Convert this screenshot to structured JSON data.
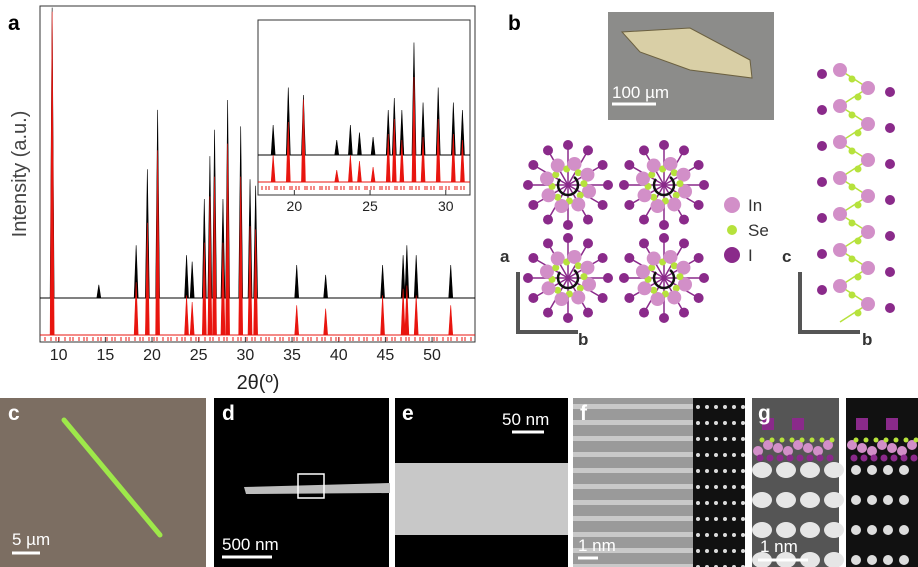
{
  "panels": {
    "a": {
      "label": "a",
      "chart": {
        "type": "line",
        "ylabel": "Intensity (a.u.)",
        "xlabel": "2θ(º)",
        "xlim": [
          8,
          54.6
        ],
        "xticks": [
          10,
          15,
          20,
          25,
          30,
          35,
          40,
          45,
          50
        ],
        "ylim": [
          0,
          100
        ],
        "series": [
          {
            "color": "#000000",
            "x": [
              9.3,
              14.3,
              18.3,
              19.5,
              20.6,
              23.7,
              24.3,
              25.6,
              26.2,
              26.7,
              27.6,
              28.1,
              29.5,
              30.5,
              31.1,
              35.5,
              38.6,
              44.7,
              46.9,
              47.3,
              48.3,
              52
            ],
            "values": [
              88,
              4,
              16,
              39,
              57,
              13,
              11,
              30,
              43,
              51,
              30,
              60,
              52,
              36,
              34,
              10,
              7,
              10,
              13,
              16,
              13,
              10
            ]
          },
          {
            "color": "#e8150f",
            "x": [
              9.3,
              18.3,
              19.5,
              20.6,
              23.7,
              24.3,
              25.6,
              26.2,
              26.7,
              27.6,
              28.1,
              29.5,
              30.5,
              31.1,
              35.5,
              38.6,
              44.7,
              46.9,
              47.3,
              48.3,
              52
            ],
            "values": [
              98,
              16,
              34,
              56,
              12,
              10,
              28,
              42,
              48,
              28,
              58,
              48,
              33,
              32,
              9,
              8,
              12,
              14,
              15,
              12,
              9
            ]
          }
        ],
        "inset": {
          "xlim": [
            17.6,
            31.6
          ],
          "xticks": [
            20,
            25,
            30
          ],
          "ylim": [
            0,
            100
          ],
          "series": [
            {
              "color": "#000000",
              "x": [
                18.6,
                19.6,
                20.6,
                22.8,
                23.7,
                24.3,
                25.2,
                26.2,
                26.6,
                27.1,
                27.9,
                28.5,
                29.5,
                30.5,
                31.1
              ],
              "values": [
                20,
                45,
                40,
                10,
                20,
                15,
                12,
                30,
                38,
                30,
                75,
                35,
                45,
                35,
                30
              ]
            },
            {
              "color": "#e8150f",
              "x": [
                18.6,
                19.6,
                20.6,
                22.8,
                23.7,
                24.3,
                25.2,
                26.2,
                26.6,
                27.1,
                27.9,
                28.5,
                29.5,
                30.5,
                31.1
              ],
              "values": [
                18,
                40,
                55,
                8,
                18,
                14,
                10,
                32,
                42,
                28,
                70,
                30,
                42,
                32,
                28
              ]
            }
          ]
        }
      }
    },
    "b": {
      "label": "b",
      "scale_bar": "100 µm",
      "legend": [
        {
          "name": "In",
          "color": "#d28fc8"
        },
        {
          "name": "Se",
          "color": "#b6e23c"
        },
        {
          "name": "I",
          "color": "#8a2a8a"
        }
      ],
      "axes_left": [
        "a",
        "b"
      ],
      "axes_right": [
        "c",
        "b"
      ]
    },
    "c": {
      "label": "c",
      "scale_bar": "5 µm"
    },
    "d": {
      "label": "d",
      "scale_bar": "500 nm"
    },
    "e": {
      "label": "e",
      "scale_bar": "50 nm"
    },
    "f": {
      "label": "f",
      "scale_bar": "1 nm"
    },
    "g": {
      "label": "g",
      "scale_bar": "1 nm"
    }
  }
}
